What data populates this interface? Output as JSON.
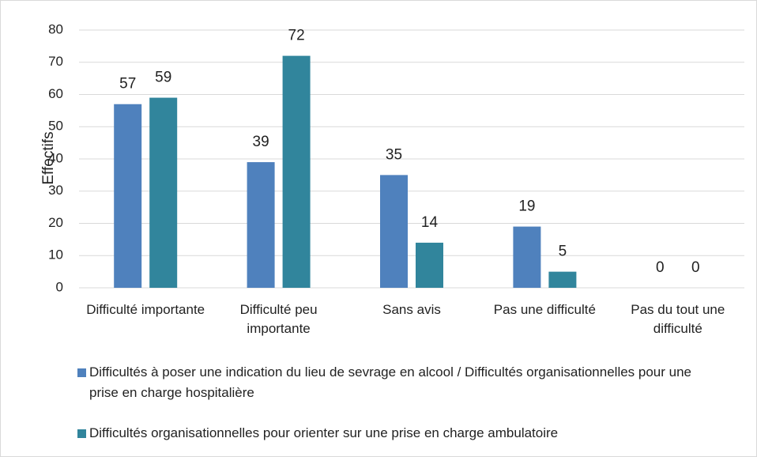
{
  "chart_data": {
    "type": "bar",
    "y_label": "Effectifs",
    "categories": [
      "Difficulté importante",
      "Difficulté peu importante",
      "Sans avis",
      "Pas une difficulté",
      "Pas du tout une difficulté"
    ],
    "series": [
      {
        "name": "Difficultés à poser une indication du lieu de sevrage en alcool / Difficultés organisationnelles pour une prise en charge hospitalière",
        "color": "#4f81bd",
        "values": [
          57,
          39,
          35,
          19,
          0
        ]
      },
      {
        "name": "Difficultés organisationnelles pour orienter sur une prise en charge ambulatoire",
        "color": "#31859c",
        "values": [
          59,
          72,
          14,
          5,
          0
        ]
      }
    ],
    "ylim": [
      0,
      80
    ],
    "yticks": [
      0,
      10,
      20,
      30,
      40,
      50,
      60,
      70,
      80
    ],
    "grid": true,
    "legend": "bottom"
  }
}
